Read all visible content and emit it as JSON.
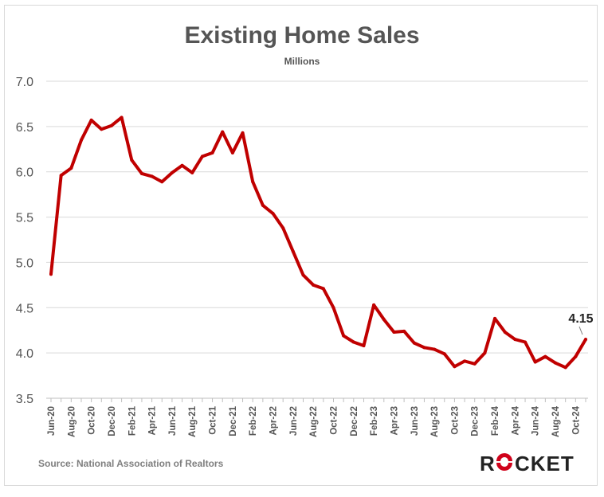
{
  "colors": {
    "line": "#c00000",
    "grid": "#d9d9d9",
    "text": "#555555",
    "source": "#7f7f7f",
    "logo_dark": "#222222",
    "logo_accent": "#d0021b"
  },
  "source": "Source: National Association of Realtors",
  "logo": {
    "text": "ROCKET"
  },
  "chart_data": {
    "type": "line",
    "title": "Existing Home Sales",
    "subtitle": "Millions",
    "xlabel": "",
    "ylabel": "",
    "ylim": [
      3.5,
      7.0
    ],
    "yticks": [
      "7.0",
      "6.5",
      "6.0",
      "5.5",
      "5.0",
      "4.5",
      "4.0",
      "3.5"
    ],
    "grid": true,
    "x": [
      "Jun-20",
      "Jul-20",
      "Aug-20",
      "Sep-20",
      "Oct-20",
      "Nov-20",
      "Dec-20",
      "Jan-21",
      "Feb-21",
      "Mar-21",
      "Apr-21",
      "May-21",
      "Jun-21",
      "Jul-21",
      "Aug-21",
      "Sep-21",
      "Oct-21",
      "Nov-21",
      "Dec-21",
      "Jan-22",
      "Feb-22",
      "Mar-22",
      "Apr-22",
      "May-22",
      "Jun-22",
      "Jul-22",
      "Aug-22",
      "Sep-22",
      "Oct-22",
      "Nov-22",
      "Dec-22",
      "Jan-23",
      "Feb-23",
      "Mar-23",
      "Apr-23",
      "May-23",
      "Jun-23",
      "Jul-23",
      "Aug-23",
      "Sep-23",
      "Oct-23",
      "Nov-23",
      "Dec-23",
      "Jan-24",
      "Feb-24",
      "Mar-24",
      "Apr-24",
      "May-24",
      "Jun-24",
      "Jul-24",
      "Aug-24",
      "Sep-24",
      "Oct-24",
      "Nov-24"
    ],
    "xtick_labels": [
      "Jun-20",
      "Aug-20",
      "Oct-20",
      "Dec-20",
      "Feb-21",
      "Apr-21",
      "Jun-21",
      "Aug-21",
      "Oct-21",
      "Dec-21",
      "Feb-22",
      "Apr-22",
      "Jun-22",
      "Aug-22",
      "Oct-22",
      "Dec-22",
      "Feb-23",
      "Apr-23",
      "Jun-23",
      "Aug-23",
      "Oct-23",
      "Dec-23",
      "Feb-24",
      "Apr-24",
      "Jun-24",
      "Aug-24",
      "Oct-24"
    ],
    "series": [
      {
        "values": [
          4.87,
          5.96,
          6.04,
          6.35,
          6.57,
          6.47,
          6.51,
          6.6,
          6.13,
          5.98,
          5.95,
          5.89,
          5.99,
          6.07,
          5.99,
          6.17,
          6.21,
          6.44,
          6.21,
          6.43,
          5.89,
          5.63,
          5.54,
          5.38,
          5.12,
          4.86,
          4.75,
          4.71,
          4.5,
          4.19,
          4.12,
          4.08,
          4.53,
          4.37,
          4.23,
          4.24,
          4.11,
          4.06,
          4.04,
          3.99,
          3.85,
          3.91,
          3.88,
          4.0,
          4.38,
          4.23,
          4.15,
          4.12,
          3.9,
          3.96,
          3.89,
          3.84,
          3.96,
          4.15
        ]
      }
    ],
    "annotations": [
      {
        "label": "4.15"
      }
    ]
  }
}
